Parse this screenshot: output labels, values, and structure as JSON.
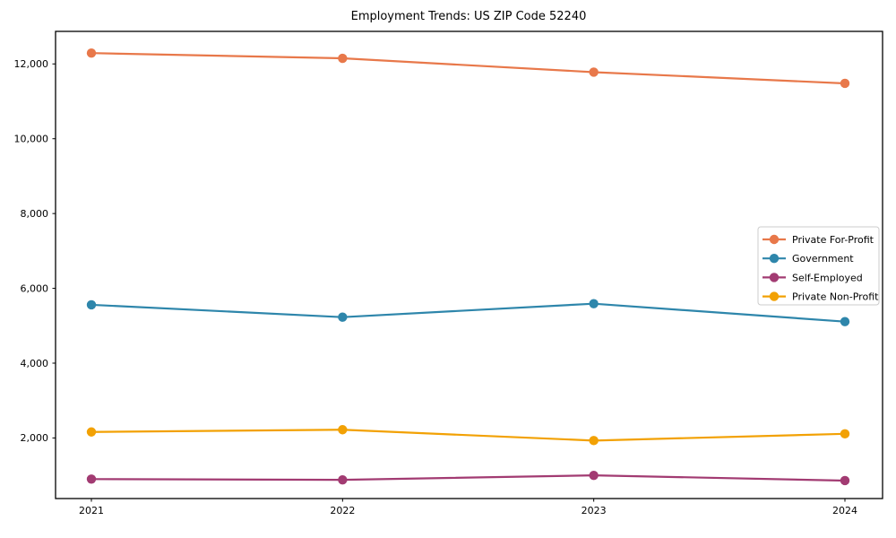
{
  "page": {
    "title": "Employment Trends: US ZIP Code 52240"
  },
  "chart_data": {
    "type": "line",
    "title": "Employment Trends: US ZIP Code 52240",
    "xlabel": "",
    "ylabel": "",
    "categories": [
      "2021",
      "2022",
      "2023",
      "2024"
    ],
    "series": [
      {
        "name": "Private For-Profit",
        "color": "#e8784a",
        "values": [
          12290,
          12150,
          11780,
          11480
        ]
      },
      {
        "name": "Government",
        "color": "#2e86ab",
        "values": [
          5560,
          5230,
          5590,
          5110
        ]
      },
      {
        "name": "Self-Employed",
        "color": "#a23b72",
        "values": [
          900,
          880,
          1000,
          860
        ]
      },
      {
        "name": "Private Non-Profit",
        "color": "#f2a104",
        "values": [
          2160,
          2220,
          1930,
          2110
        ]
      }
    ],
    "yticks": [
      2000,
      4000,
      6000,
      8000,
      10000,
      12000
    ],
    "ytick_labels": [
      "2,000",
      "4,000",
      "6,000",
      "8,000",
      "10,000",
      "12,000"
    ],
    "ylim": [
      380,
      12870
    ],
    "grid": false,
    "marker": "circle",
    "legend_position": "center right",
    "spine_color": "#000000",
    "legend_border_color": "#cccccc",
    "legend_background": "#ffffff"
  }
}
